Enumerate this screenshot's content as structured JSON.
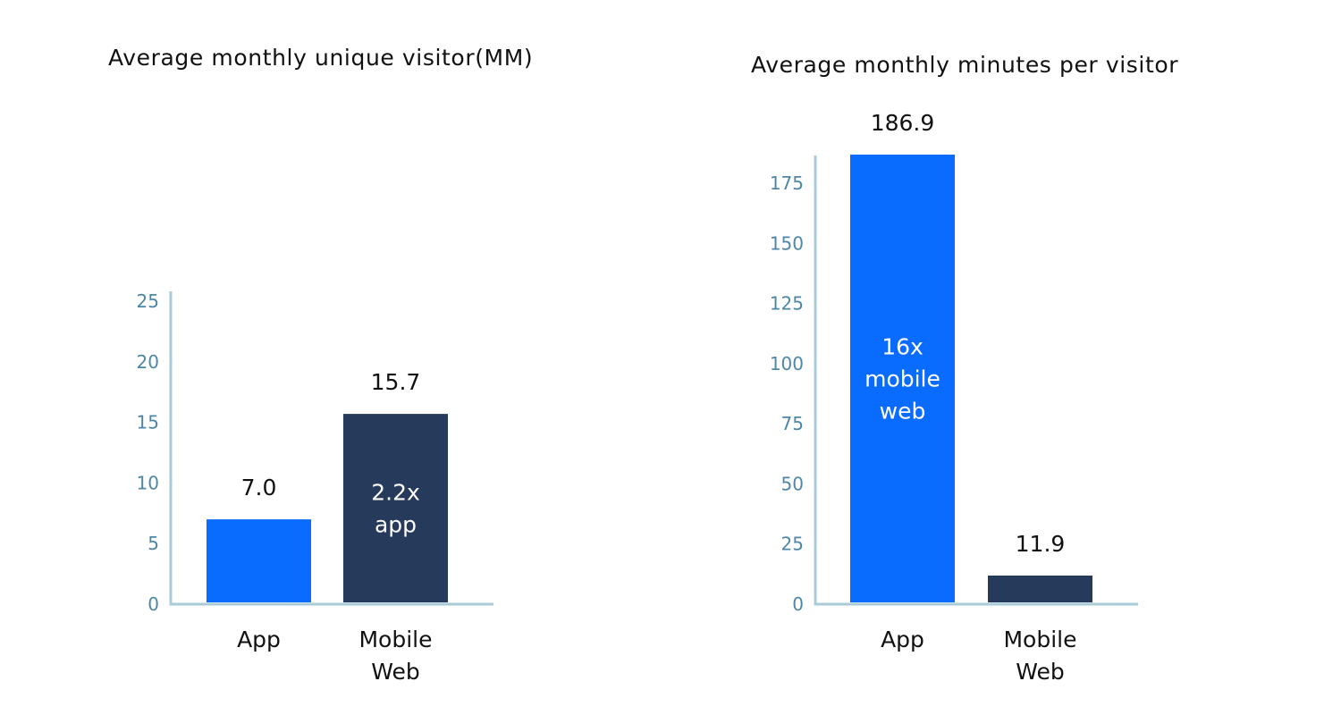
{
  "chart_data": [
    {
      "type": "bar",
      "title": "Average monthly unique visitor(MM)",
      "categories": [
        [
          "App"
        ],
        [
          "Mobile",
          "Web"
        ]
      ],
      "values": [
        7.0,
        15.7
      ],
      "value_labels": [
        "7.0",
        "15.7"
      ],
      "bar_colors": [
        "#0a6cff",
        "#263a5c"
      ],
      "bar_notes": [
        [],
        [
          "2.2x",
          "app"
        ]
      ],
      "ylim": [
        0,
        25
      ],
      "yticks": [
        0,
        5,
        10,
        15,
        20,
        25
      ],
      "xlabel": "",
      "ylabel": "",
      "grid": false
    },
    {
      "type": "bar",
      "title": "Average monthly minutes per visitor",
      "categories": [
        [
          "App"
        ],
        [
          "Mobile",
          "Web"
        ]
      ],
      "values": [
        186.9,
        11.9
      ],
      "value_labels": [
        "186.9",
        "11.9"
      ],
      "bar_colors": [
        "#0a6cff",
        "#263a5c"
      ],
      "bar_notes": [
        [
          "16x",
          "mobile",
          "web"
        ],
        []
      ],
      "ylim": [
        0,
        175
      ],
      "yticks": [
        0,
        25,
        50,
        75,
        100,
        125,
        150,
        175
      ],
      "xlabel": "",
      "ylabel": "",
      "grid": false
    }
  ],
  "colors": {
    "axis": "#a9cbd8",
    "tick_text": "#4d87a8",
    "text": "#111111",
    "primary_bar": "#0a6cff",
    "secondary_bar": "#263a5c"
  }
}
